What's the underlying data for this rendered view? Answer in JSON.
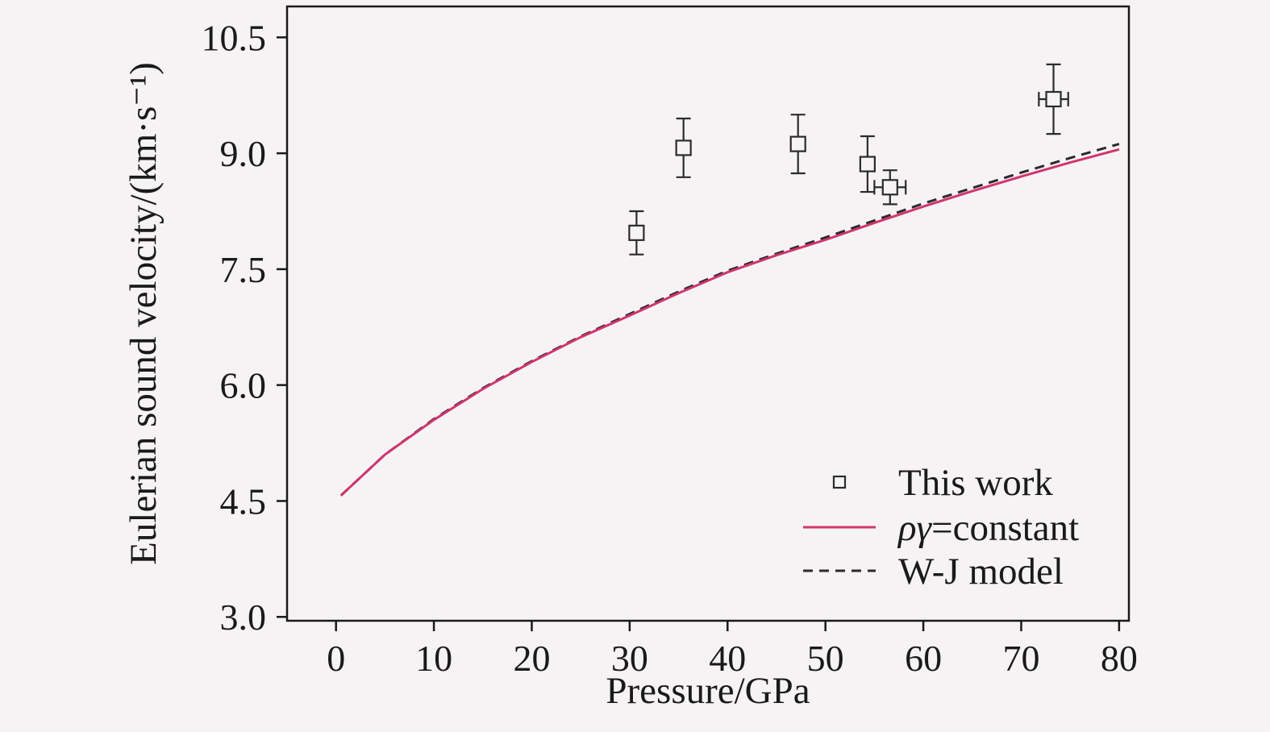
{
  "figure": {
    "background": "#f6f3f5",
    "frame_color": "#1a1a1a",
    "accent_pink": "#d1356e",
    "ink": "#2b2b2b"
  },
  "chart_data": {
    "type": "line+scatter",
    "title": "",
    "xlabel": "Pressure/GPa",
    "ylabel": "Eulerian sound velocity/(km·s⁻¹)",
    "xlim": [
      -5,
      81
    ],
    "ylim": [
      2.95,
      10.9
    ],
    "xticks": [
      0,
      10,
      20,
      30,
      40,
      50,
      60,
      70,
      80
    ],
    "xtick_labels": [
      "0",
      "10",
      "20",
      "30",
      "40",
      "50",
      "60",
      "70",
      "80"
    ],
    "yticks": [
      3.0,
      4.5,
      6.0,
      7.5,
      9.0,
      10.5
    ],
    "ytick_labels": [
      "3.0",
      "4.5",
      "6.0",
      "7.5",
      "9.0",
      "10.5"
    ],
    "grid": false,
    "series": [
      {
        "name": "This work",
        "type": "scatter",
        "marker": "open-square",
        "color": "#2b2b2b",
        "points": [
          {
            "x": 30.7,
            "y": 7.97,
            "yerr": 0.28
          },
          {
            "x": 35.5,
            "y": 9.07,
            "yerr": 0.38
          },
          {
            "x": 47.2,
            "y": 9.12,
            "yerr": 0.38
          },
          {
            "x": 54.3,
            "y": 8.86,
            "yerr": 0.36
          },
          {
            "x": 56.6,
            "y": 8.56,
            "yerr": 0.22,
            "xerr": 1.6
          },
          {
            "x": 73.3,
            "y": 9.7,
            "yerr": 0.45,
            "xerr": 1.5
          }
        ]
      },
      {
        "name": "ργ=constant",
        "type": "line",
        "line_style": "solid",
        "color": "#d1356e",
        "x": [
          0.5,
          5,
          10,
          15,
          20,
          25,
          30,
          35,
          40,
          45,
          50,
          55,
          60,
          65,
          70,
          75,
          80
        ],
        "y": [
          4.57,
          5.1,
          5.55,
          5.95,
          6.3,
          6.62,
          6.9,
          7.19,
          7.46,
          7.68,
          7.88,
          8.1,
          8.31,
          8.51,
          8.7,
          8.88,
          9.05
        ]
      },
      {
        "name": "W-J model",
        "type": "line",
        "line_style": "dashed",
        "color": "#2b2b2b",
        "x": [
          0.5,
          5,
          10,
          15,
          20,
          25,
          30,
          35,
          40,
          45,
          50,
          55,
          60,
          65,
          70,
          75,
          80
        ],
        "y": [
          4.57,
          5.1,
          5.56,
          5.96,
          6.31,
          6.63,
          6.92,
          7.21,
          7.48,
          7.7,
          7.91,
          8.13,
          8.35,
          8.55,
          8.75,
          8.94,
          9.12
        ]
      }
    ],
    "legend": {
      "position": "lower-right",
      "entries": [
        {
          "series": "This work",
          "swatch": "open-square",
          "color": "#2b2b2b",
          "label_parts": [
            {
              "text": "This work",
              "italic": false
            }
          ]
        },
        {
          "series": "ργ=constant",
          "swatch": "solid-line",
          "color": "#d1356e",
          "label_parts": [
            {
              "text": "ργ",
              "italic": true
            },
            {
              "text": "=constant",
              "italic": false
            }
          ]
        },
        {
          "series": "W-J model",
          "swatch": "dashed-line",
          "color": "#2b2b2b",
          "label_parts": [
            {
              "text": "W-J model",
              "italic": false
            }
          ]
        }
      ]
    }
  }
}
